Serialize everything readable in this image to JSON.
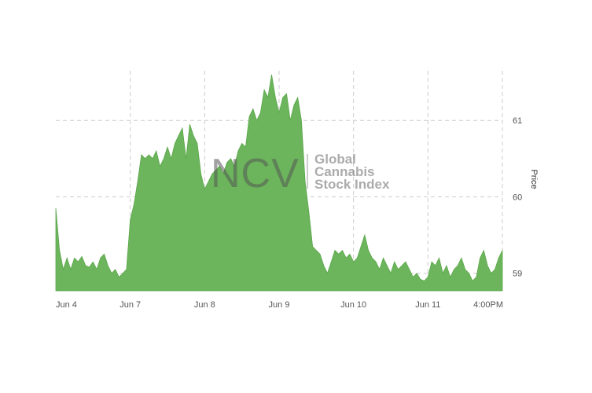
{
  "chart_data": {
    "type": "area",
    "title": "",
    "xlabel": "",
    "ylabel": "Price",
    "ylim": [
      58.77,
      61.65
    ],
    "yticks": [
      59,
      60,
      61
    ],
    "grid": true,
    "area_color": "#6cb55c",
    "x_ticks": [
      {
        "label": "Jun 4",
        "t": 0.0
      },
      {
        "label": "Jun 7",
        "t": 1.0
      },
      {
        "label": "Jun 8",
        "t": 2.0
      },
      {
        "label": "Jun 9",
        "t": 3.0
      },
      {
        "label": "Jun 10",
        "t": 4.0
      },
      {
        "label": "Jun 11",
        "t": 5.0
      },
      {
        "label": "4:00PM",
        "t": 6.0
      }
    ],
    "series": [
      {
        "name": "",
        "x": [
          0.0,
          0.05,
          0.1,
          0.15,
          0.2,
          0.25,
          0.3,
          0.35,
          0.4,
          0.45,
          0.5,
          0.55,
          0.6,
          0.65,
          0.7,
          0.75,
          0.8,
          0.85,
          0.9,
          0.95,
          1.0,
          1.05,
          1.1,
          1.15,
          1.2,
          1.25,
          1.3,
          1.35,
          1.4,
          1.45,
          1.5,
          1.55,
          1.6,
          1.65,
          1.7,
          1.75,
          1.8,
          1.85,
          1.9,
          1.95,
          2.0,
          2.05,
          2.1,
          2.15,
          2.2,
          2.25,
          2.3,
          2.35,
          2.4,
          2.45,
          2.5,
          2.55,
          2.6,
          2.65,
          2.7,
          2.75,
          2.8,
          2.85,
          2.9,
          2.95,
          3.0,
          3.05,
          3.1,
          3.15,
          3.2,
          3.25,
          3.3,
          3.35,
          3.4,
          3.45,
          3.5,
          3.55,
          3.6,
          3.65,
          3.7,
          3.75,
          3.8,
          3.85,
          3.9,
          3.95,
          4.0,
          4.05,
          4.1,
          4.15,
          4.2,
          4.25,
          4.3,
          4.35,
          4.4,
          4.45,
          4.5,
          4.55,
          4.6,
          4.65,
          4.7,
          4.75,
          4.8,
          4.85,
          4.9,
          4.95,
          5.0,
          5.05,
          5.1,
          5.15,
          5.2,
          5.25,
          5.3,
          5.35,
          5.4,
          5.45,
          5.5,
          5.55,
          5.6,
          5.65,
          5.7,
          5.75,
          5.8,
          5.85,
          5.9,
          5.95,
          6.0
        ],
        "y": [
          59.85,
          59.3,
          59.05,
          59.2,
          59.05,
          59.2,
          59.15,
          59.22,
          59.1,
          59.08,
          59.15,
          59.05,
          59.2,
          59.25,
          59.1,
          59.0,
          59.05,
          58.95,
          59.0,
          59.05,
          59.7,
          59.9,
          60.2,
          60.55,
          60.5,
          60.55,
          60.5,
          60.6,
          60.4,
          60.5,
          60.65,
          60.5,
          60.7,
          60.8,
          60.9,
          60.5,
          60.95,
          60.8,
          60.7,
          60.3,
          60.1,
          60.2,
          60.3,
          60.35,
          60.4,
          60.3,
          60.45,
          60.5,
          60.4,
          60.6,
          60.7,
          60.65,
          61.05,
          61.15,
          61.0,
          61.1,
          61.4,
          61.3,
          61.6,
          61.3,
          61.1,
          61.3,
          61.35,
          61.0,
          61.2,
          61.3,
          61.0,
          60.2,
          59.8,
          59.35,
          59.3,
          59.25,
          59.1,
          59.0,
          59.15,
          59.3,
          59.25,
          59.3,
          59.2,
          59.25,
          59.15,
          59.2,
          59.35,
          59.5,
          59.3,
          59.2,
          59.15,
          59.05,
          59.2,
          59.1,
          59.0,
          59.15,
          59.05,
          59.1,
          59.15,
          59.05,
          58.95,
          59.0,
          58.92,
          58.9,
          58.95,
          59.15,
          59.1,
          59.2,
          59.0,
          59.1,
          58.95,
          59.05,
          59.1,
          59.2,
          59.05,
          59.0,
          58.9,
          58.95,
          59.2,
          59.3,
          59.1,
          59.0,
          59.05,
          59.2,
          59.3
        ]
      }
    ]
  },
  "watermark": {
    "letters": "NCV",
    "line1": "Global",
    "line2": "Cannabis",
    "line3": "Stock Index"
  }
}
